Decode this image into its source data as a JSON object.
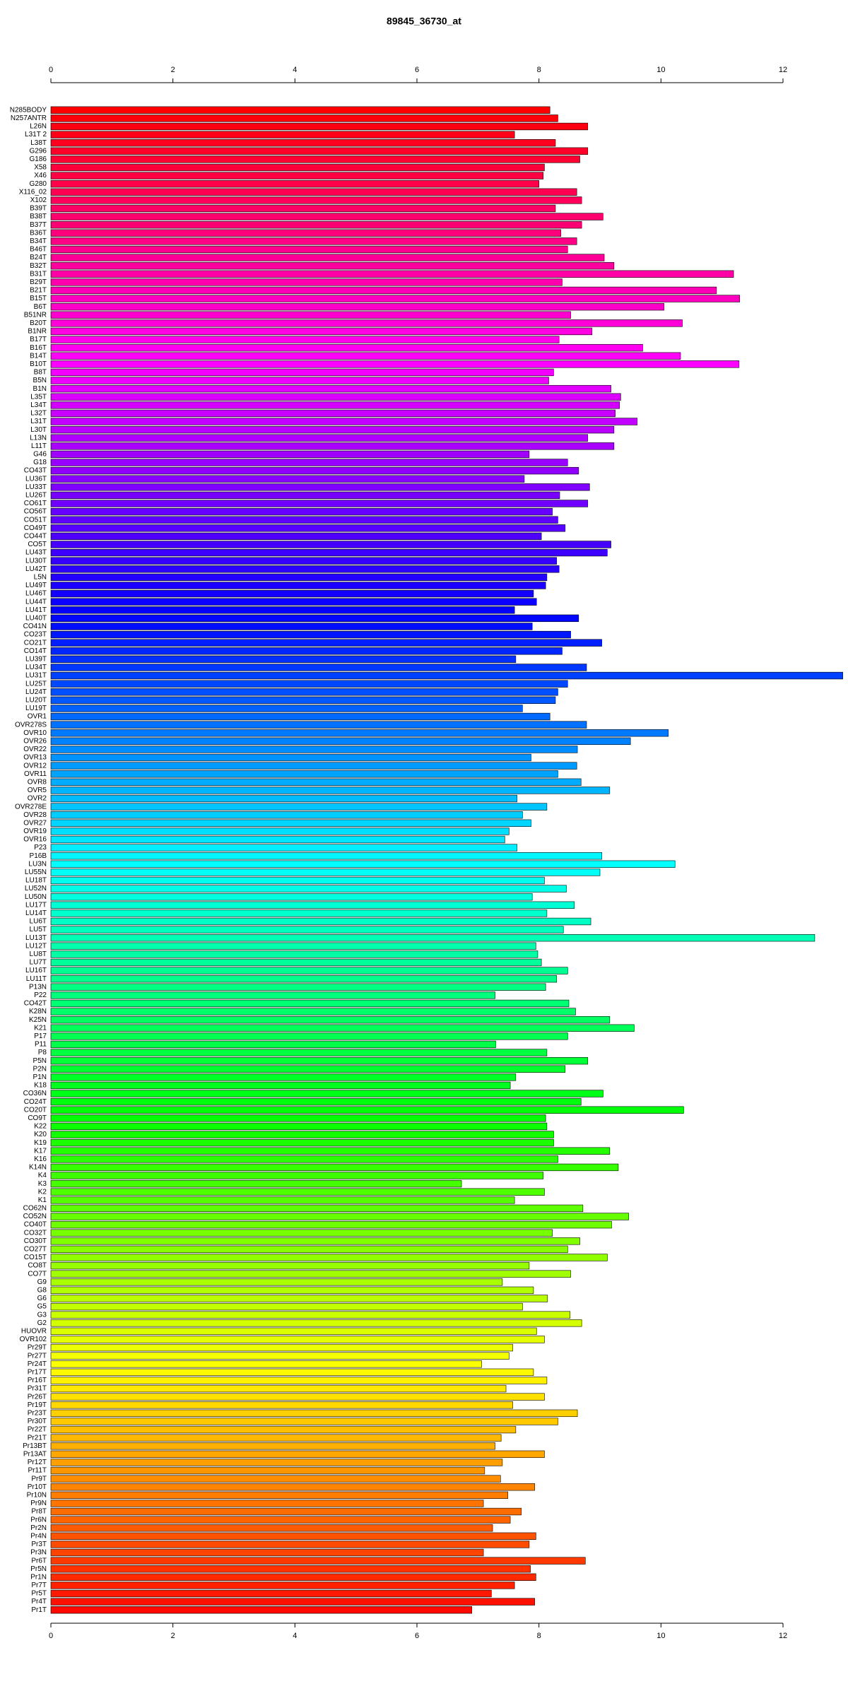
{
  "chart_data": {
    "type": "barh",
    "title": "89845_36730_at",
    "categories": [
      "N285BODY",
      "N257ANTR",
      "L26N",
      "L31T 2",
      "L38T",
      "G296",
      "G186",
      "X58",
      "X46",
      "G280",
      "X116_02",
      "X102",
      "B39T",
      "B38T",
      "B37T",
      "B36T",
      "B34T",
      "B46T",
      "B24T",
      "B32T",
      "B31T",
      "B29T",
      "B21T",
      "B15T",
      "B6T",
      "B51NR",
      "B20T",
      "B1NR",
      "B17T",
      "B16T",
      "B14T",
      "B10T",
      "B8T",
      "B5N",
      "B1N",
      "L35T",
      "L34T",
      "L32T",
      "L31T",
      "L30T",
      "L13N",
      "L11T",
      "G46",
      "G18",
      "CO43T",
      "LU36T",
      "LU33T",
      "LU26T",
      "CO61T",
      "CO56T",
      "CO51T",
      "CO49T",
      "CO44T",
      "CO5T",
      "LU43T",
      "LU30T",
      "LU42T",
      "L5N",
      "LU49T",
      "LU46T",
      "LU44T",
      "LU41T",
      "LU40T",
      "CO41N",
      "CO23T",
      "CO21T",
      "CO14T",
      "LU39T",
      "LU34T",
      "LU31T",
      "LU25T",
      "LU24T",
      "LU20T",
      "LU19T",
      "OVR1",
      "OVR278S",
      "OVR10",
      "OVR26",
      "OVR22",
      "OVR13",
      "OVR12",
      "OVR11",
      "OVR8",
      "OVR5",
      "OVR2",
      "OVR278E",
      "OVR28",
      "OVR27",
      "OVR19",
      "OVR16",
      "P23",
      "P16B",
      "LU3N",
      "LU55N",
      "LU18T",
      "LU52N",
      "LU50N",
      "LU17T",
      "LU14T",
      "LU6T",
      "LU5T",
      "LU13T",
      "LU12T",
      "LU8T",
      "LU7T",
      "LU16T",
      "LU11T",
      "P13N",
      "P22",
      "CO42T",
      "K28N",
      "K25N",
      "K21",
      "P17",
      "P11",
      "P8",
      "P5N",
      "P2N",
      "P1N",
      "K18",
      "CO36N",
      "CO24T",
      "CO20T",
      "CO9T",
      "K22",
      "K20",
      "K19",
      "K17",
      "K16",
      "K14N",
      "K4",
      "K3",
      "K2",
      "K1",
      "CO62N",
      "CO52N",
      "CO40T",
      "CO32T",
      "CO30T",
      "CO27T",
      "CO15T",
      "CO8T",
      "CO7T",
      "G9",
      "G8",
      "G6",
      "G5",
      "G3",
      "G2",
      "HUOVR",
      "OVR102",
      "Pr29T",
      "Pr27T",
      "Pr24T",
      "Pr17T",
      "Pr16T",
      "Pr31T",
      "Pr26T",
      "Pr19T",
      "Pr23T",
      "Pr30T",
      "Pr22T",
      "Pr21T",
      "Pr13BT",
      "Pr13AT",
      "Pr12T",
      "Pr11T",
      "Pr9T",
      "Pr10T",
      "Pr10N",
      "Pr9N",
      "Pr8T",
      "Pr6N",
      "Pr2N",
      "Pr4N",
      "Pr3T",
      "Pr3N",
      "Pr6T",
      "Pr5N",
      "Pr1N",
      "Pr7T",
      "Pr5T",
      "Pr4T",
      "Pr1T"
    ],
    "values": [
      8.18,
      8.31,
      8.8,
      7.6,
      8.27,
      8.8,
      8.67,
      8.09,
      8.07,
      8.0,
      8.62,
      8.7,
      8.27,
      9.05,
      8.7,
      8.36,
      8.62,
      8.47,
      9.07,
      9.23,
      11.19,
      8.38,
      10.91,
      11.29,
      10.05,
      8.52,
      10.35,
      8.87,
      8.33,
      9.7,
      10.32,
      11.28,
      8.24,
      8.16,
      9.18,
      9.34,
      9.32,
      9.25,
      9.61,
      9.23,
      8.8,
      9.23,
      7.84,
      8.47,
      8.65,
      7.76,
      8.83,
      8.34,
      8.8,
      8.22,
      8.31,
      8.43,
      8.04,
      9.18,
      9.12,
      8.29,
      8.33,
      8.13,
      8.11,
      7.91,
      7.96,
      7.6,
      8.65,
      7.89,
      8.52,
      9.03,
      8.38,
      7.62,
      8.78,
      12.98,
      8.47,
      8.31,
      8.27,
      7.73,
      8.18,
      8.78,
      10.12,
      9.5,
      8.63,
      7.87,
      8.62,
      8.31,
      8.69,
      9.16,
      7.64,
      8.13,
      7.73,
      7.87,
      7.51,
      7.44,
      7.64,
      9.03,
      10.23,
      9.0,
      8.09,
      8.45,
      7.89,
      8.58,
      8.13,
      8.85,
      8.4,
      12.52,
      7.95,
      7.98,
      8.04,
      8.47,
      8.29,
      8.11,
      7.28,
      8.49,
      8.6,
      9.16,
      9.56,
      8.47,
      7.29,
      8.13,
      8.8,
      8.43,
      7.62,
      7.53,
      9.05,
      8.69,
      10.37,
      8.11,
      8.13,
      8.24,
      8.24,
      9.16,
      8.31,
      9.3,
      8.07,
      6.73,
      8.09,
      7.6,
      8.72,
      9.47,
      9.19,
      8.22,
      8.67,
      8.47,
      9.12,
      7.84,
      8.52,
      7.4,
      7.91,
      8.14,
      7.73,
      8.51,
      8.7,
      7.96,
      8.09,
      7.57,
      7.51,
      7.06,
      7.91,
      8.13,
      7.46,
      8.09,
      7.57,
      8.63,
      8.31,
      7.62,
      7.38,
      7.28,
      8.09,
      7.4,
      7.11,
      7.37,
      7.93,
      7.49,
      7.09,
      7.71,
      7.53,
      7.24,
      7.95,
      7.84,
      7.09,
      8.76,
      7.86,
      7.95,
      7.6,
      7.22,
      7.93,
      6.9
    ],
    "palette": "rainbow",
    "xlim": [
      0,
      12
    ],
    "xticks": [
      0,
      2,
      4,
      6,
      8,
      10,
      12
    ]
  }
}
